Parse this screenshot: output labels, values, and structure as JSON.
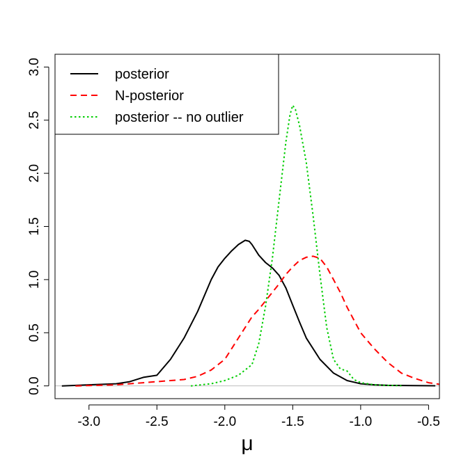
{
  "chart_data": {
    "type": "line",
    "title": "",
    "xlabel": "μ",
    "ylabel": "",
    "xlim": [
      -3.25,
      -0.42
    ],
    "ylim": [
      -0.12,
      3.12
    ],
    "x_ticks": [
      -3.0,
      -2.5,
      -2.0,
      -1.5,
      -1.0,
      -0.5
    ],
    "x_tick_labels": [
      "-3.0",
      "-2.5",
      "-2.0",
      "-1.5",
      "-1.0",
      "-0.5"
    ],
    "y_ticks": [
      0.0,
      0.5,
      1.0,
      1.5,
      2.0,
      2.5,
      3.0
    ],
    "y_tick_labels": [
      "0.0",
      "0.5",
      "1.0",
      "1.5",
      "2.0",
      "2.5",
      "3.0"
    ],
    "grid": false,
    "zero_reference_line": true,
    "colors": {
      "reference": "#bebebe",
      "axis": "#000000"
    },
    "legend": {
      "position": "top-left",
      "entries": [
        {
          "label": "posterior",
          "color": "#000000",
          "dash": "solid"
        },
        {
          "label": "N-posterior",
          "color": "#ff0000",
          "dash": "dashed"
        },
        {
          "label": "posterior -- no outlier",
          "color": "#00cd00",
          "dash": "dotted"
        }
      ]
    },
    "series": [
      {
        "name": "posterior",
        "color": "#000000",
        "dash": "solid",
        "x": [
          -3.2,
          -3.0,
          -2.8,
          -2.7,
          -2.6,
          -2.5,
          -2.4,
          -2.3,
          -2.2,
          -2.1,
          -2.05,
          -2.0,
          -1.95,
          -1.9,
          -1.85,
          -1.82,
          -1.8,
          -1.75,
          -1.7,
          -1.65,
          -1.6,
          -1.55,
          -1.5,
          -1.45,
          -1.4,
          -1.3,
          -1.2,
          -1.1,
          -1.0,
          -0.9,
          -0.8,
          -0.6,
          -0.45
        ],
        "y": [
          0.0,
          0.01,
          0.02,
          0.04,
          0.08,
          0.1,
          0.25,
          0.45,
          0.7,
          1.0,
          1.12,
          1.2,
          1.27,
          1.33,
          1.37,
          1.36,
          1.33,
          1.23,
          1.16,
          1.11,
          1.04,
          0.92,
          0.76,
          0.6,
          0.45,
          0.25,
          0.12,
          0.05,
          0.02,
          0.01,
          0.005,
          0.003,
          0.001
        ]
      },
      {
        "name": "N-posterior",
        "color": "#ff0000",
        "dash": "dashed",
        "x": [
          -3.1,
          -2.8,
          -2.6,
          -2.4,
          -2.3,
          -2.2,
          -2.1,
          -2.0,
          -1.95,
          -1.9,
          -1.85,
          -1.8,
          -1.75,
          -1.7,
          -1.65,
          -1.6,
          -1.55,
          -1.5,
          -1.45,
          -1.4,
          -1.35,
          -1.3,
          -1.25,
          -1.2,
          -1.15,
          -1.1,
          -1.05,
          -1.0,
          -0.9,
          -0.8,
          -0.7,
          -0.6,
          -0.5,
          -0.42
        ],
        "y": [
          0.0,
          0.01,
          0.03,
          0.05,
          0.06,
          0.09,
          0.15,
          0.25,
          0.35,
          0.45,
          0.55,
          0.65,
          0.72,
          0.8,
          0.88,
          0.96,
          1.05,
          1.12,
          1.18,
          1.21,
          1.22,
          1.2,
          1.12,
          1.0,
          0.88,
          0.74,
          0.62,
          0.5,
          0.35,
          0.22,
          0.12,
          0.07,
          0.03,
          0.015
        ]
      },
      {
        "name": "posterior -- no outlier",
        "color": "#00cd00",
        "dash": "dotted",
        "x": [
          -2.25,
          -2.1,
          -2.0,
          -1.9,
          -1.8,
          -1.75,
          -1.7,
          -1.65,
          -1.6,
          -1.55,
          -1.52,
          -1.5,
          -1.48,
          -1.45,
          -1.4,
          -1.35,
          -1.3,
          -1.25,
          -1.2,
          -1.15,
          -1.1,
          -1.05,
          -1.0,
          -0.9,
          -0.8,
          -0.7
        ],
        "y": [
          0.0,
          0.02,
          0.05,
          0.1,
          0.2,
          0.4,
          0.75,
          1.2,
          1.75,
          2.3,
          2.55,
          2.64,
          2.6,
          2.45,
          2.1,
          1.6,
          1.05,
          0.55,
          0.25,
          0.16,
          0.14,
          0.06,
          0.03,
          0.01,
          0.005,
          0.002
        ]
      }
    ]
  }
}
